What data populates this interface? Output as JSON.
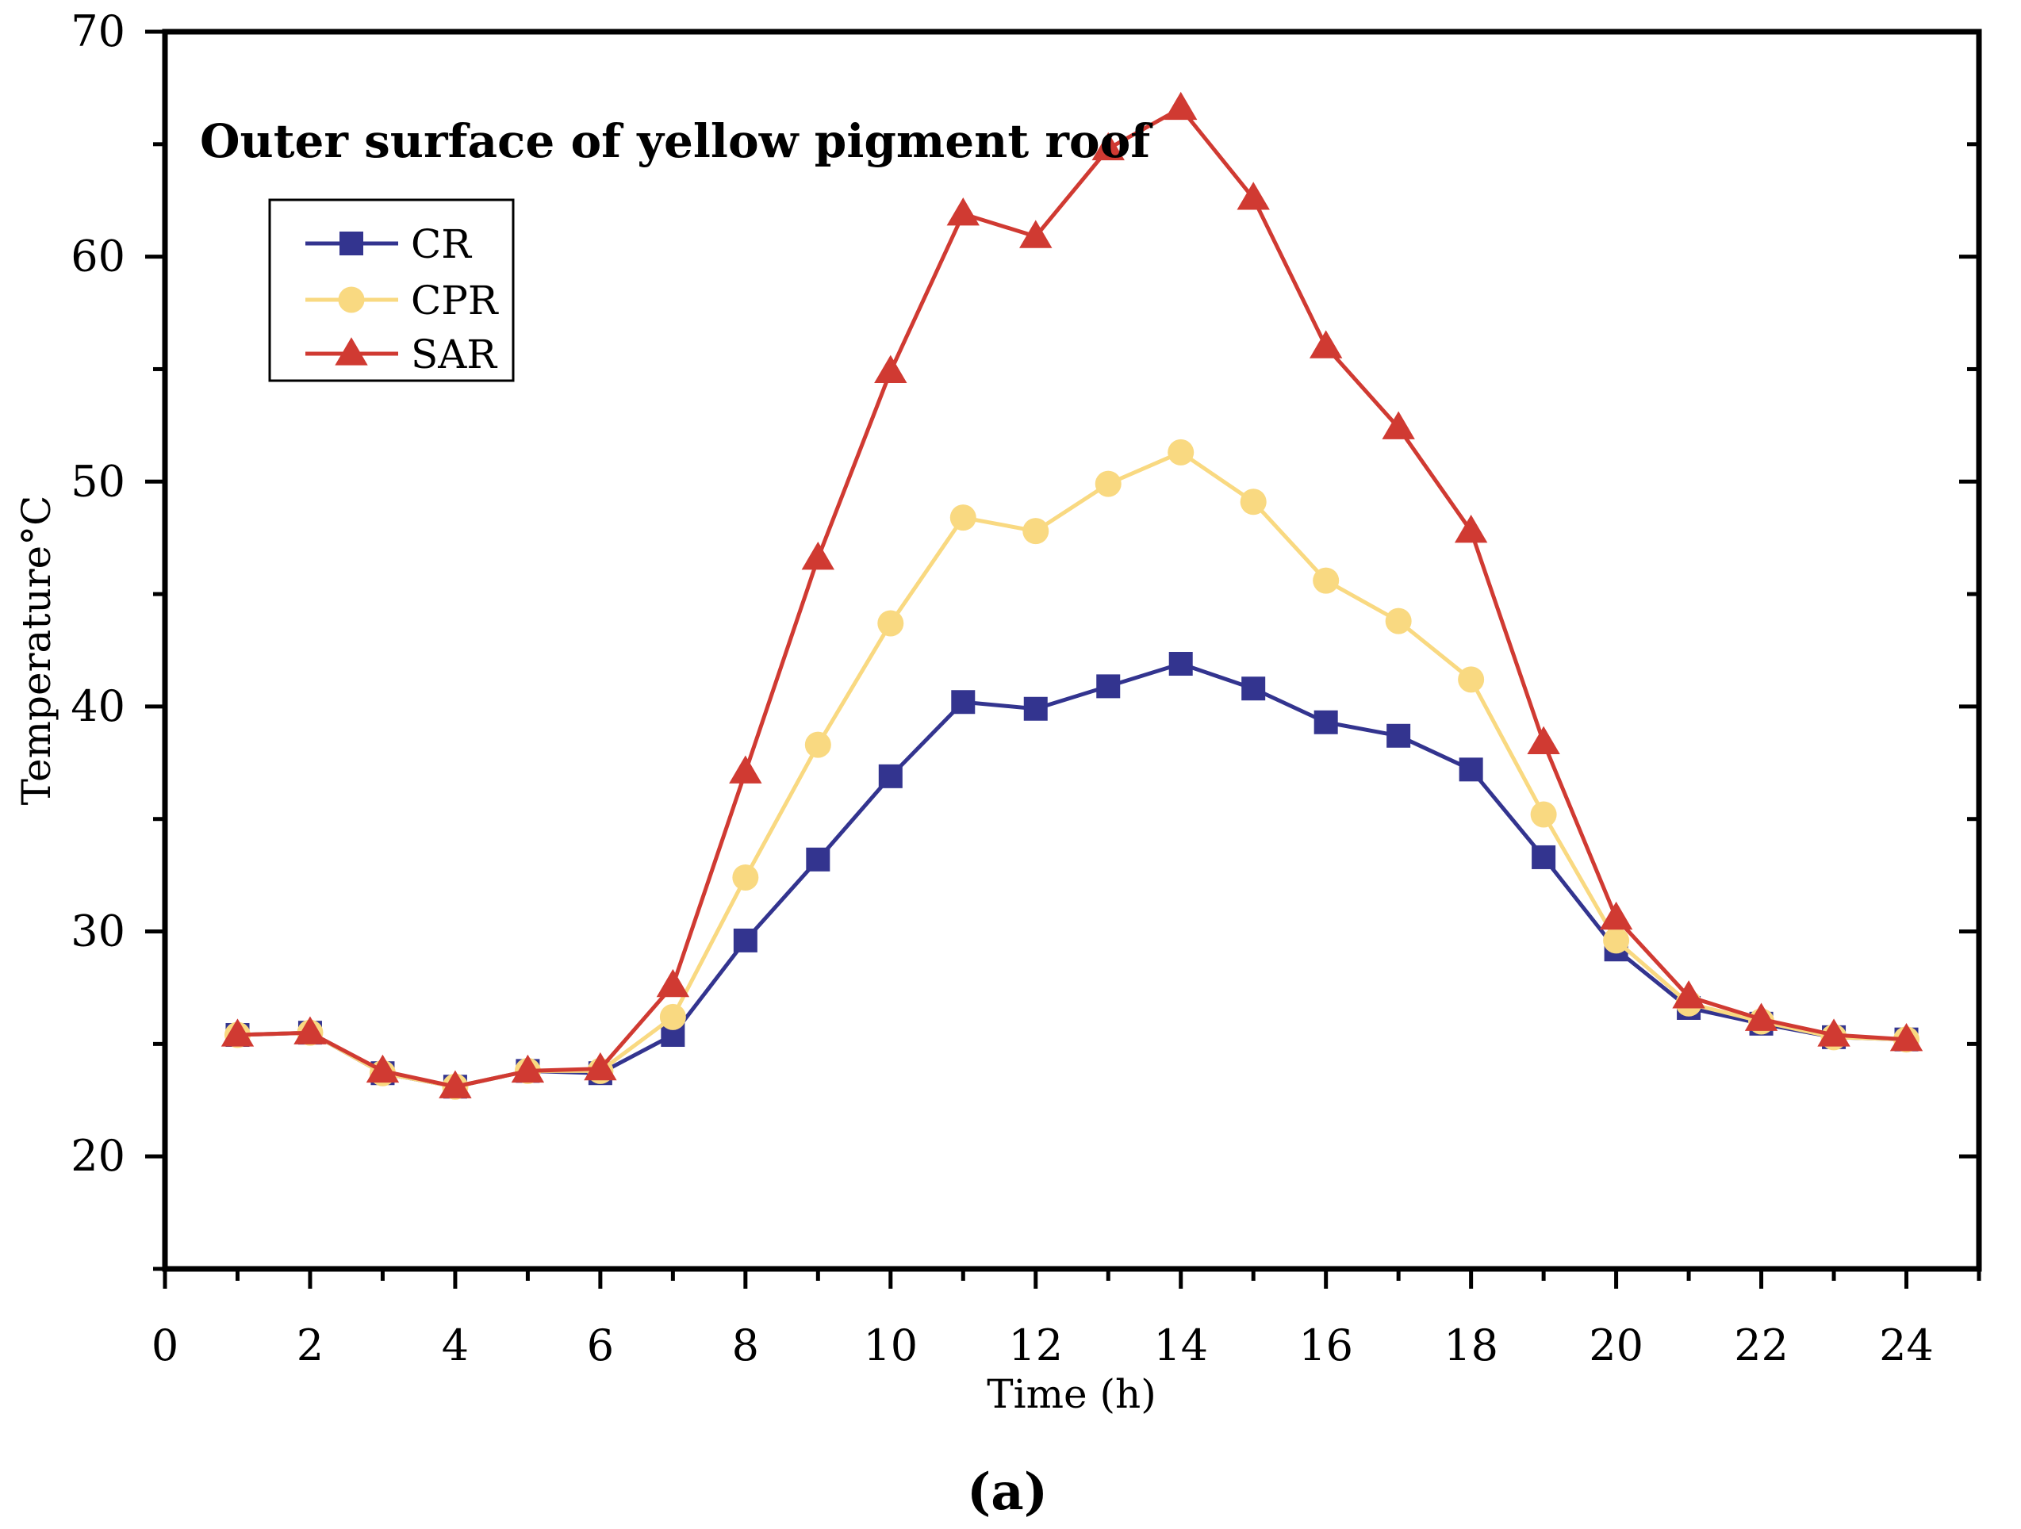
{
  "chart_data": {
    "type": "line",
    "title": "Outer surface of yellow pigment roof",
    "xlabel": "Time (h)",
    "ylabel": "Temperature",
    "ylabel_unit": "°C",
    "panel_label": "(a)",
    "xlim": [
      0,
      25
    ],
    "ylim": [
      15,
      70
    ],
    "xticks": [
      0,
      2,
      4,
      6,
      8,
      10,
      12,
      14,
      16,
      18,
      20,
      22,
      24
    ],
    "yticks": [
      20,
      30,
      40,
      50,
      60,
      70
    ],
    "x": [
      1,
      2,
      3,
      4,
      5,
      6,
      7,
      8,
      9,
      10,
      11,
      12,
      13,
      14,
      15,
      16,
      17,
      18,
      19,
      20,
      21,
      22,
      23,
      24
    ],
    "legend_position": "top-left",
    "series": [
      {
        "name": "CR",
        "marker": "square",
        "color": "#33348f",
        "values": [
          25.4,
          25.5,
          23.7,
          23.1,
          23.8,
          23.7,
          25.4,
          29.6,
          33.2,
          36.9,
          40.2,
          39.9,
          40.9,
          41.9,
          40.8,
          39.3,
          38.7,
          37.2,
          33.3,
          29.2,
          26.6,
          25.9,
          25.3,
          25.2
        ]
      },
      {
        "name": "CPR",
        "marker": "circle",
        "color": "#f9d981",
        "values": [
          25.4,
          25.5,
          23.7,
          23.1,
          23.8,
          23.8,
          26.2,
          32.4,
          38.3,
          43.7,
          48.4,
          47.8,
          49.9,
          51.3,
          49.1,
          45.6,
          43.8,
          41.2,
          35.2,
          29.6,
          26.8,
          26.0,
          25.3,
          25.2
        ]
      },
      {
        "name": "SAR",
        "marker": "triangle",
        "color": "#d03a32",
        "values": [
          25.4,
          25.5,
          23.8,
          23.1,
          23.8,
          23.9,
          27.6,
          37.1,
          46.6,
          54.9,
          61.9,
          60.9,
          64.8,
          66.6,
          62.6,
          56.0,
          52.4,
          47.8,
          38.4,
          30.6,
          27.1,
          26.1,
          25.4,
          25.2
        ]
      }
    ]
  }
}
